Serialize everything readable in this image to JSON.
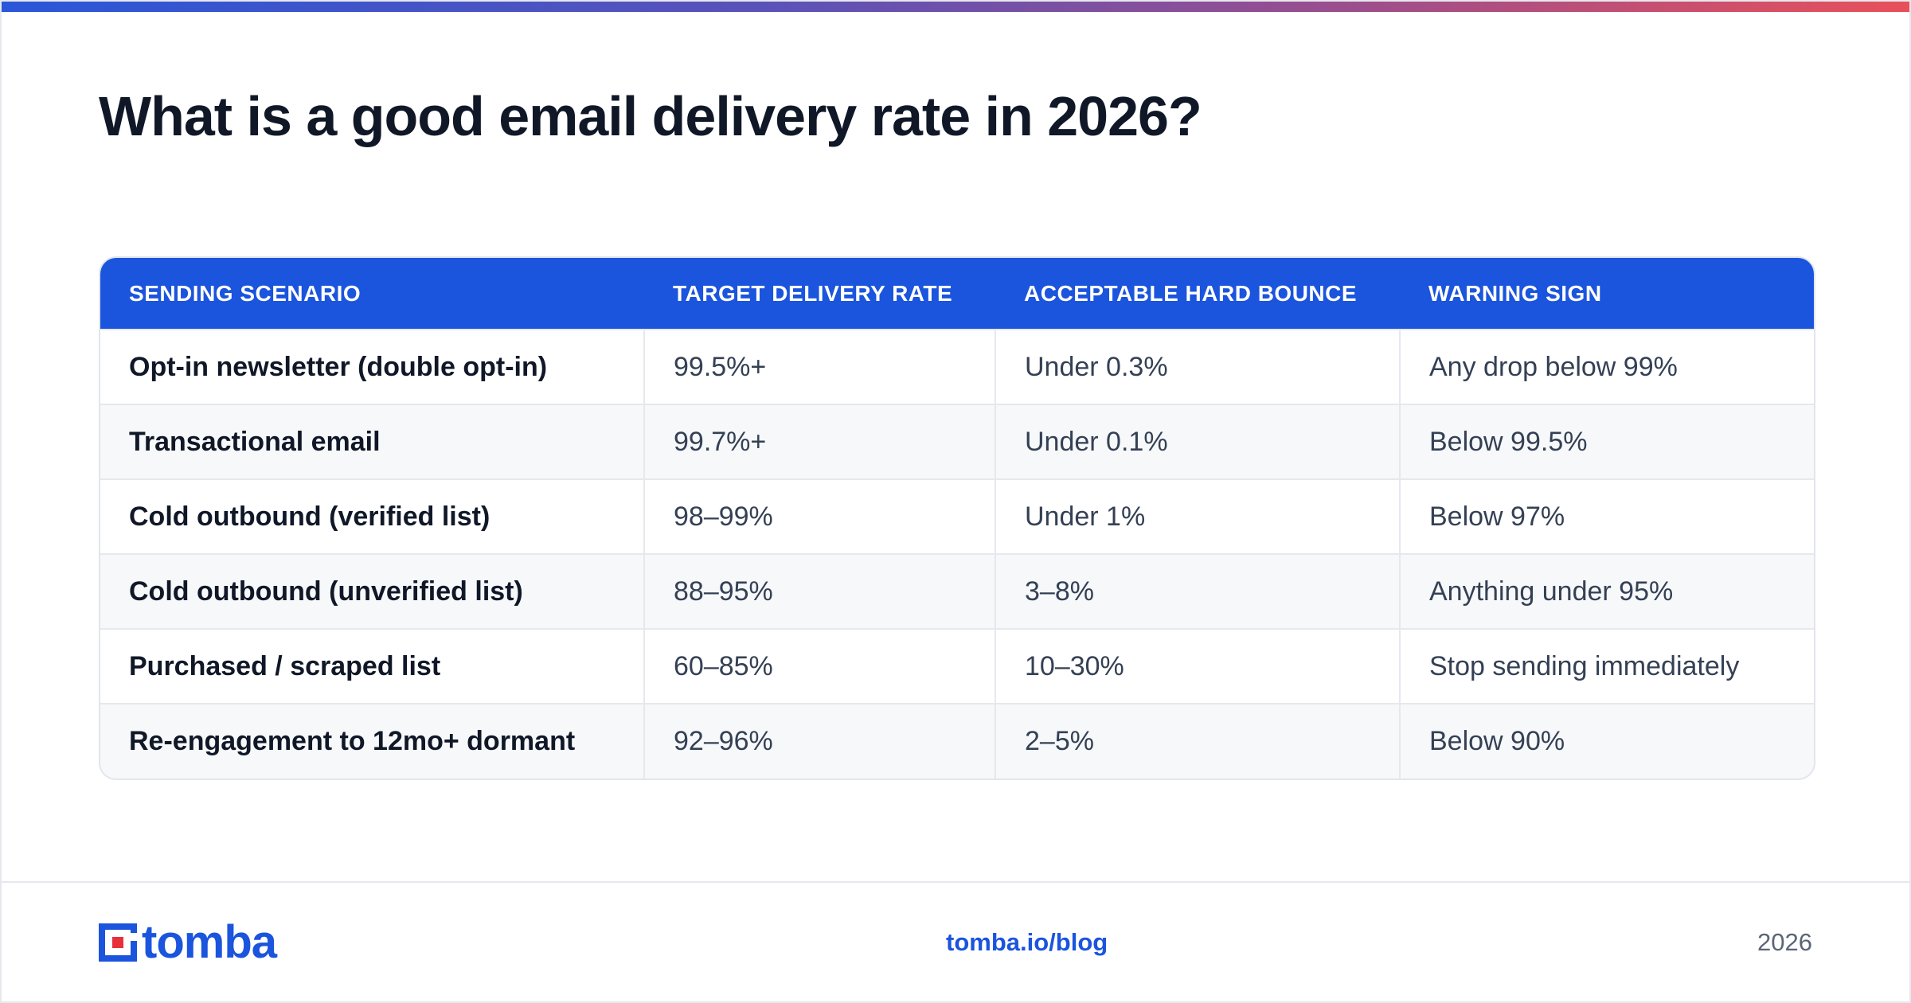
{
  "title": "What is a good email delivery rate in 2026?",
  "table": {
    "headers": [
      "SENDING SCENARIO",
      "TARGET DELIVERY RATE",
      "ACCEPTABLE HARD BOUNCE",
      "WARNING SIGN"
    ],
    "rows": [
      [
        "Opt-in newsletter (double opt-in)",
        "99.5%+",
        "Under 0.3%",
        "Any drop below 99%"
      ],
      [
        "Transactional email",
        "99.7%+",
        "Under 0.1%",
        "Below 99.5%"
      ],
      [
        "Cold outbound (verified list)",
        "98–99%",
        "Under 1%",
        "Below 97%"
      ],
      [
        "Cold outbound (unverified list)",
        "88–95%",
        "3–8%",
        "Anything under 95%"
      ],
      [
        "Purchased / scraped list",
        "60–85%",
        "10–30%",
        "Stop sending immediately"
      ],
      [
        "Re-engagement to 12mo+ dormant",
        "92–96%",
        "2–5%",
        "Below 90%"
      ]
    ]
  },
  "footer": {
    "logo_text": "tomba",
    "link": "tomba.io/blog",
    "year": "2026"
  },
  "colors": {
    "accent": "#1b54dd",
    "logo_dot": "#e8303a",
    "title": "#101828",
    "gradient_start": "#2a56d8",
    "gradient_end": "#e8505a"
  }
}
